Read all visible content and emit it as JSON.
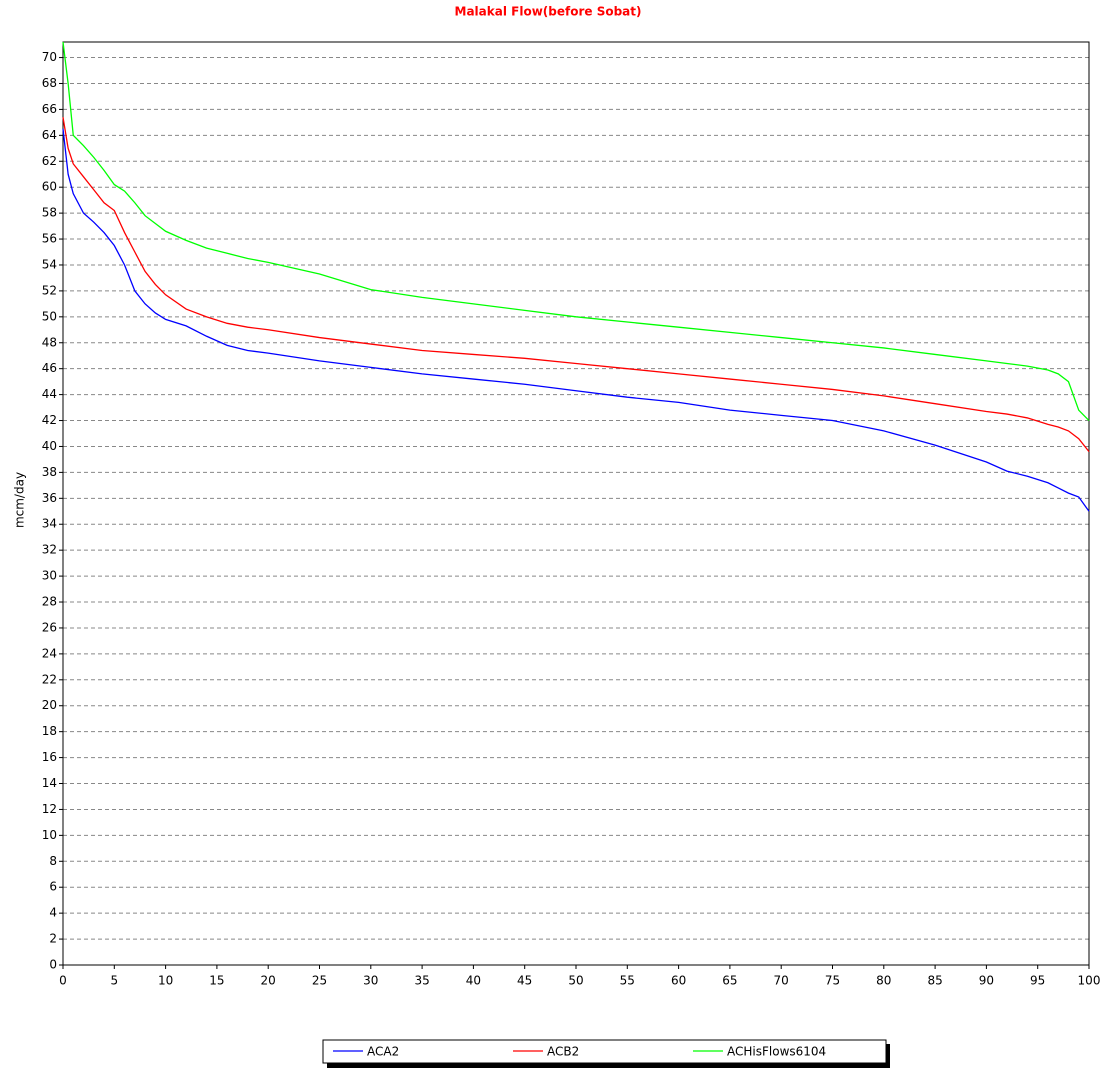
{
  "chart_data": {
    "type": "line",
    "title": "Malakal Flow(before Sobat)",
    "y_label": "mcm/day",
    "x": [
      0,
      0.5,
      1,
      2,
      3,
      4,
      5,
      6,
      7,
      8,
      9,
      10,
      12,
      14,
      16,
      18,
      20,
      25,
      30,
      35,
      40,
      45,
      50,
      55,
      60,
      65,
      70,
      75,
      80,
      85,
      90,
      92,
      94,
      96,
      97,
      98,
      99,
      100
    ],
    "series": [
      {
        "name": "ACA2",
        "color": "#0000ff",
        "values": [
          64.5,
          61,
          59.5,
          58,
          57.3,
          56.5,
          55.5,
          54,
          52,
          51,
          50.3,
          49.8,
          49.3,
          48.5,
          47.8,
          47.4,
          47.2,
          46.6,
          46.1,
          45.6,
          45.2,
          44.8,
          44.3,
          43.8,
          43.4,
          42.8,
          42.4,
          42.0,
          41.2,
          40.1,
          38.8,
          38.1,
          37.7,
          37.2,
          36.8,
          36.4,
          36.1,
          35.0
        ]
      },
      {
        "name": "ACB2",
        "color": "#ff0000",
        "values": [
          65.4,
          63,
          61.8,
          60.8,
          59.8,
          58.8,
          58.2,
          56.5,
          55,
          53.5,
          52.5,
          51.7,
          50.6,
          50.0,
          49.5,
          49.2,
          49.0,
          48.4,
          47.9,
          47.4,
          47.1,
          46.8,
          46.4,
          46.0,
          45.6,
          45.2,
          44.8,
          44.4,
          43.9,
          43.3,
          42.7,
          42.5,
          42.2,
          41.7,
          41.5,
          41.2,
          40.6,
          39.6
        ]
      },
      {
        "name": "ACHisFlows6104",
        "color": "#00ff00",
        "values": [
          71.2,
          68,
          64,
          63.2,
          62.3,
          61.3,
          60.2,
          59.7,
          58.8,
          57.8,
          57.2,
          56.6,
          55.9,
          55.3,
          54.9,
          54.5,
          54.2,
          53.3,
          52.1,
          51.5,
          51.0,
          50.5,
          50.0,
          49.6,
          49.2,
          48.8,
          48.4,
          48.0,
          47.6,
          47.1,
          46.6,
          46.4,
          46.2,
          45.9,
          45.6,
          45.0,
          42.8,
          42.0
        ]
      }
    ],
    "xlim": [
      0,
      100
    ],
    "ylim": [
      0,
      71.2
    ],
    "xticks": [
      0,
      5,
      10,
      15,
      20,
      25,
      30,
      35,
      40,
      45,
      50,
      55,
      60,
      65,
      70,
      75,
      80,
      85,
      90,
      95,
      100
    ],
    "yticks": [
      0,
      2,
      4,
      6,
      8,
      10,
      12,
      14,
      16,
      18,
      20,
      22,
      24,
      26,
      28,
      30,
      32,
      34,
      36,
      38,
      40,
      42,
      44,
      46,
      48,
      50,
      52,
      54,
      56,
      58,
      60,
      62,
      64,
      66,
      68,
      70
    ],
    "grid": true,
    "legend": "bottom"
  }
}
